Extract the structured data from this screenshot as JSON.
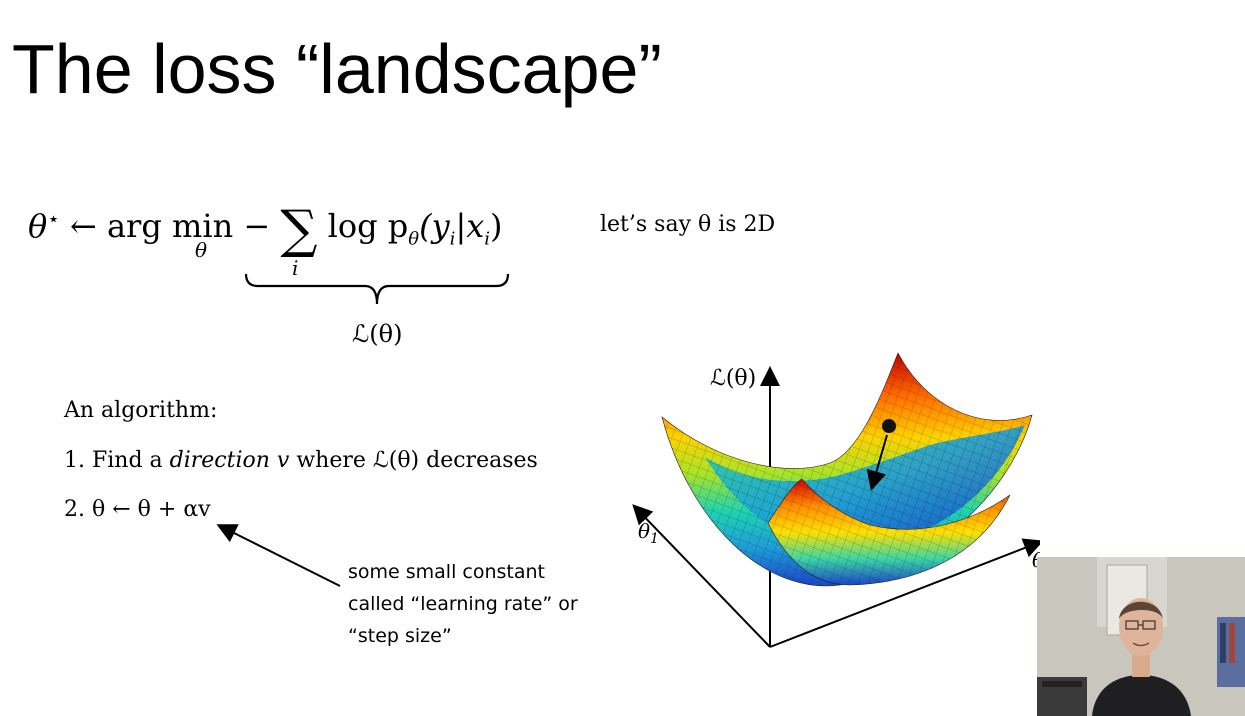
{
  "slide": {
    "title": "The loss “landscape”",
    "equation": {
      "lhs": "θ",
      "star": "⋆",
      "arrow": "←",
      "argmin": "arg min",
      "argmin_sub": "θ",
      "minus": "−",
      "sigma": "∑",
      "sum_sub": "i",
      "rhs": "log p",
      "rhs_sub": "θ",
      "rhs_args": "(y",
      "rhs_i1": "i",
      "rhs_bar": "|x",
      "rhs_i2": "i",
      "rhs_close": ")"
    },
    "aside": "let’s say θ is 2D",
    "loss_label": "ℒ(θ)",
    "algorithm": {
      "heading": "An algorithm:",
      "step1_prefix": "1. Find a ",
      "step1_italic": "direction v",
      "step1_suffix": " where ℒ(θ) decreases",
      "step2": "2.  θ ← θ + αv"
    },
    "note_lines": [
      "some small constant",
      "called “learning rate” or",
      "“step size”"
    ]
  },
  "plot": {
    "y_axis_label": "ℒ(θ)",
    "theta1_label": "θ",
    "theta1_sub": "1",
    "theta2_label": "θ",
    "surface_colors": [
      "#c60000",
      "#ff6a00",
      "#ffd200",
      "#a9e32a",
      "#1fd3b0",
      "#1f9bd8",
      "#1a46c8"
    ]
  },
  "webcam": {
    "description_icon": "presenter-video-icon"
  }
}
